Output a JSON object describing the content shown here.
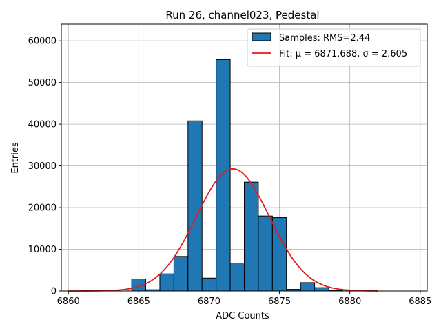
{
  "chart_data": {
    "type": "bar",
    "title": "Run 26, channel023, Pedestal",
    "xlabel": "ADC Counts",
    "ylabel": "Entries",
    "xlim": [
      6859.5,
      6885.5
    ],
    "ylim": [
      0,
      64000
    ],
    "xticks": [
      6860,
      6865,
      6870,
      6875,
      6880,
      6885
    ],
    "yticks": [
      0,
      10000,
      20000,
      30000,
      40000,
      50000,
      60000
    ],
    "grid": true,
    "legend_position": "top-right",
    "bar_color": "#1f77b4",
    "fit_color": "#e41a1c",
    "bin_width": 1,
    "bins": [
      {
        "x": 6865,
        "value": 2900
      },
      {
        "x": 6866,
        "value": 300
      },
      {
        "x": 6867,
        "value": 4100
      },
      {
        "x": 6868,
        "value": 8300
      },
      {
        "x": 6869,
        "value": 40800
      },
      {
        "x": 6870,
        "value": 3100
      },
      {
        "x": 6871,
        "value": 55500
      },
      {
        "x": 6872,
        "value": 6700
      },
      {
        "x": 6873,
        "value": 26100
      },
      {
        "x": 6874,
        "value": 18000
      },
      {
        "x": 6875,
        "value": 17600
      },
      {
        "x": 6876,
        "value": 400
      },
      {
        "x": 6877,
        "value": 2000
      },
      {
        "x": 6878,
        "value": 800
      },
      {
        "x": 6879,
        "value": 100
      }
    ],
    "fit": {
      "mu": 6871.688,
      "sigma": 2.605,
      "amplitude": 29300,
      "x_range": [
        6860,
        6882
      ]
    },
    "series": [
      {
        "name": "Samples: RMS=2.44",
        "kind": "histogram"
      },
      {
        "name": "Fit: μ = 6871.688, σ = 2.605",
        "kind": "gaussian-fit"
      }
    ]
  }
}
